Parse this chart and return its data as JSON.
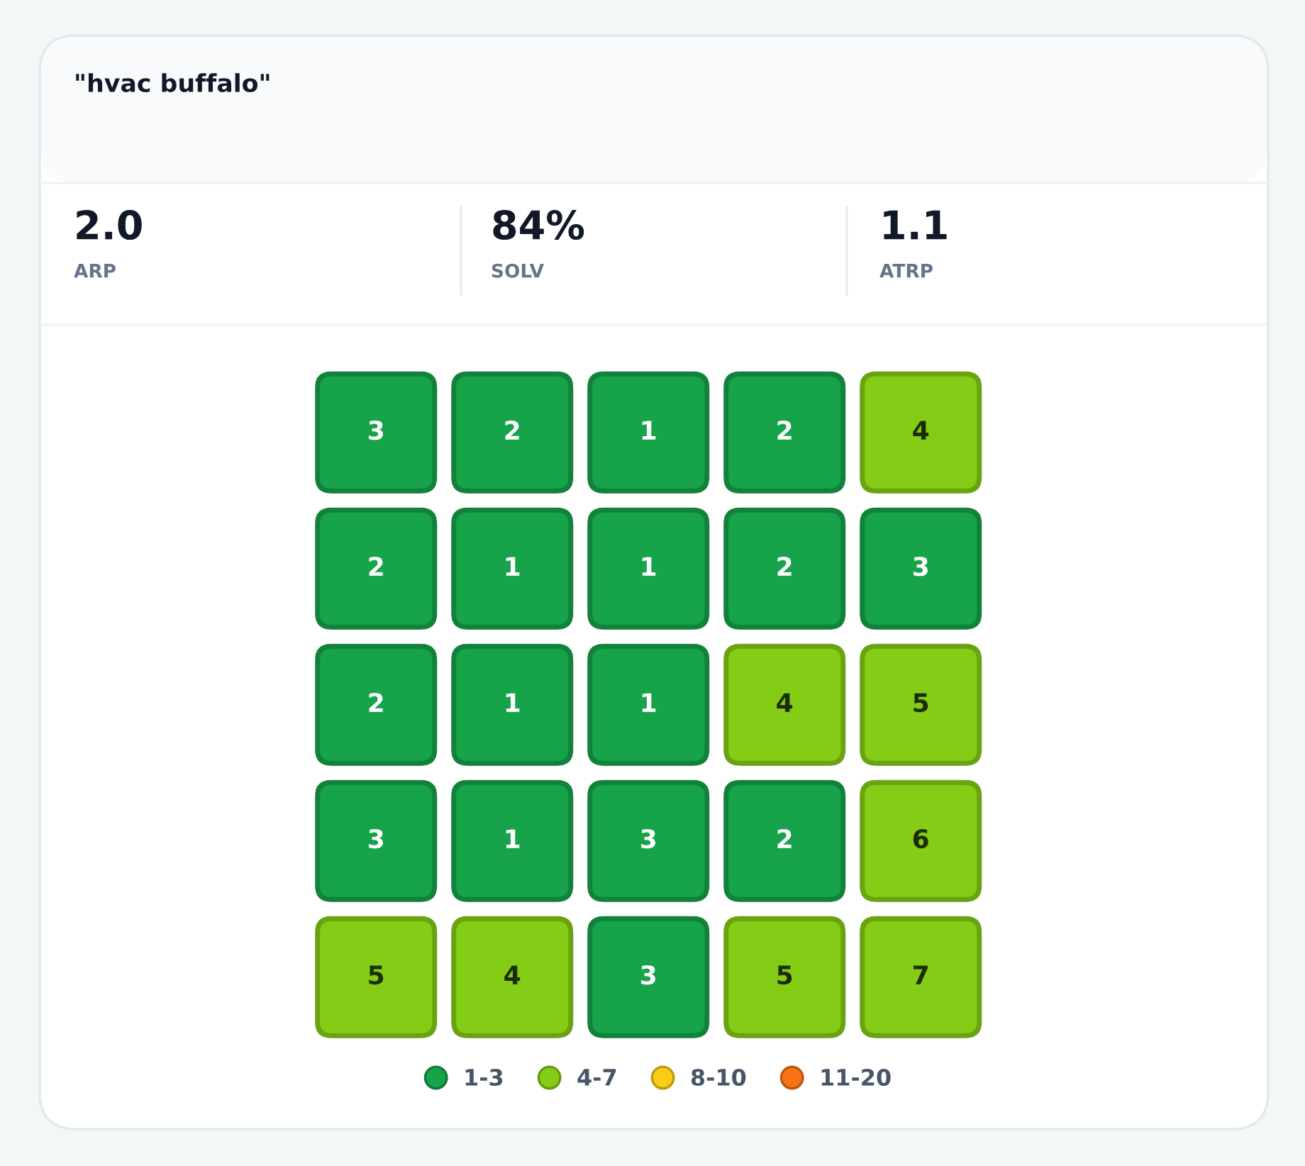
{
  "chart_data": [
    {
      "type": "other",
      "title": "\"hvac buffalo\"",
      "annotations": [
        "2.0",
        "ARP",
        "84%",
        "SOLV",
        "1.1",
        "ATRP"
      ]
    },
    {
      "type": "heatmap",
      "categories": [
        null,
        null,
        null,
        null,
        null
      ],
      "y_categories": [
        null,
        null,
        null,
        null,
        null
      ],
      "cells": [
        [
          3,
          2,
          1,
          2,
          4
        ],
        [
          2,
          1,
          1,
          2,
          3
        ],
        [
          2,
          1,
          1,
          4,
          5
        ],
        [
          3,
          1,
          3,
          2,
          6
        ],
        [
          5,
          4,
          3,
          5,
          7
        ]
      ],
      "colors": [
        [
          "#16a34a",
          "#16a34a",
          "#16a34a",
          "#16a34a",
          "#84cc16"
        ],
        [
          "#16a34a",
          "#16a34a",
          "#16a34a",
          "#16a34a",
          "#16a34a"
        ],
        [
          "#16a34a",
          "#16a34a",
          "#16a34a",
          "#84cc16",
          "#84cc16"
        ],
        [
          "#16a34a",
          "#16a34a",
          "#16a34a",
          "#16a34a",
          "#84cc16"
        ],
        [
          "#84cc16",
          "#84cc16",
          "#16a34a",
          "#84cc16",
          "#84cc16"
        ]
      ],
      "series": [
        {
          "name": "1-3",
          "color": "#16a34a",
          "values": [
            null,
            null,
            null,
            null,
            null
          ]
        },
        {
          "name": "4-7",
          "color": "#84cc16",
          "values": [
            null,
            null,
            null,
            null,
            null
          ]
        },
        {
          "name": "8-10",
          "color": "#facc15",
          "values": [
            null,
            null,
            null,
            null,
            null
          ]
        },
        {
          "name": "11-20",
          "color": "#f97316",
          "values": [
            null,
            null,
            null,
            null,
            null
          ]
        }
      ],
      "legend": "bottom",
      "data_labels": true
    }
  ]
}
